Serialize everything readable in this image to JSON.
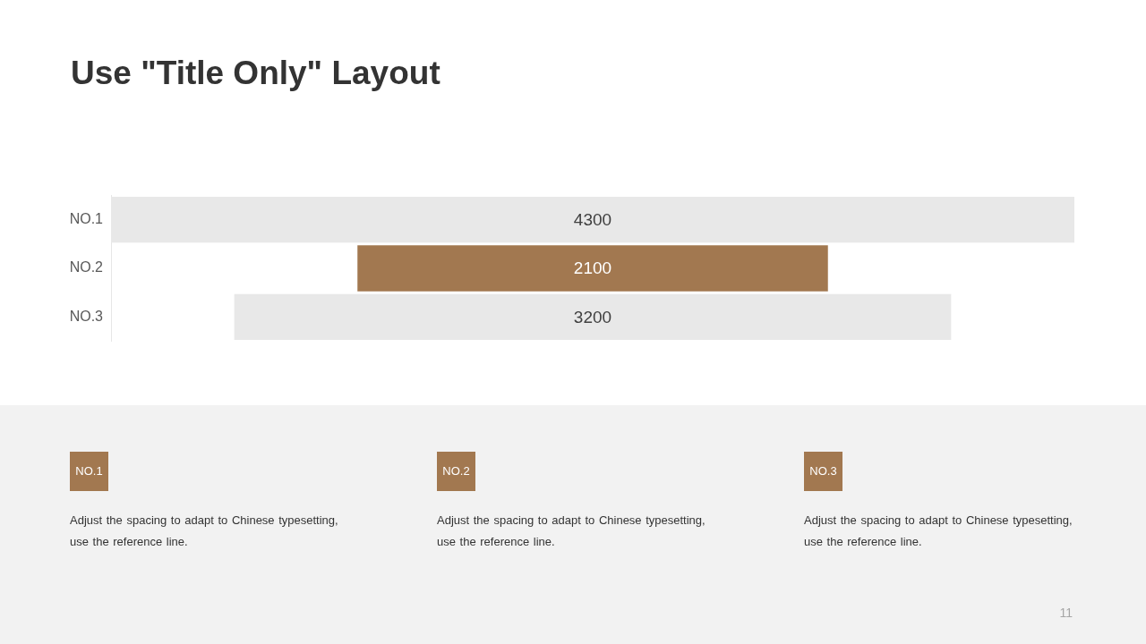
{
  "chart_data": [
    {
      "type": "other",
      "title": "Use \"Title Only\" Layout",
      "categories": [
        "NO.1",
        "NO.2",
        "NO.3"
      ],
      "values": [
        4300,
        2100,
        3200
      ],
      "colors": [
        "#e8e8e8",
        "#a27850",
        "#e8e8e8"
      ],
      "data_labels": true,
      "annotations": [
        "11"
      ]
    },
    {
      "type": "other",
      "annotations": [
        "NO.1",
        "Adjust the spacing to adapt to Chinese typesetting, use the reference line.",
        "NO.2",
        "Adjust the spacing to adapt to Chinese typesetting, use the reference line.",
        "NO.3",
        "Adjust the spacing to adapt to Chinese typesetting, use the reference line."
      ]
    }
  ]
}
